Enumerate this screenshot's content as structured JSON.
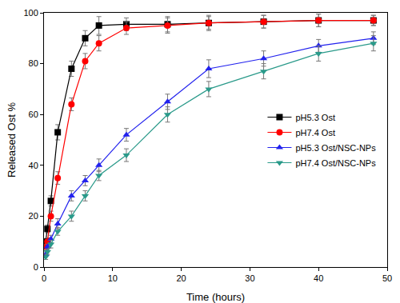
{
  "chart_data": {
    "type": "line",
    "x_label": "Time (hours)",
    "y_label": "Released Ost %",
    "xlim": [
      0,
      50
    ],
    "xticks": [
      0,
      10,
      20,
      30,
      40,
      50
    ],
    "ylim": [
      0,
      100
    ],
    "yticks": [
      0,
      20,
      40,
      60,
      80,
      100
    ],
    "grid": false,
    "legend": "right",
    "x": [
      0.25,
      0.5,
      1,
      2,
      4,
      6,
      8,
      12,
      18,
      24,
      32,
      40,
      48
    ],
    "series": [
      {
        "name": "pH5.3 Ost",
        "color": "#000000",
        "marker": "square",
        "values": [
          10,
          15,
          26,
          53,
          78,
          90,
          95,
          95.5,
          95.5,
          96,
          96.5,
          97,
          97
        ],
        "errors": [
          1,
          1.5,
          2,
          3,
          3,
          3,
          3.5,
          2.5,
          3,
          3,
          2.5,
          2.5,
          2
        ]
      },
      {
        "name": "pH7.4 Ost",
        "color": "#ff0000",
        "marker": "circle",
        "values": [
          8,
          10,
          20,
          35,
          64,
          81,
          88,
          94,
          95,
          96,
          96.5,
          97,
          97
        ],
        "errors": [
          1,
          1.5,
          2,
          2.5,
          2.5,
          3,
          3,
          2.5,
          3,
          2.5,
          2.5,
          2.5,
          2
        ]
      },
      {
        "name": "pH5.3 Ost/NSC-NPs",
        "color": "#2222ee",
        "marker": "triangle-up",
        "values": [
          5,
          8,
          11,
          17,
          28,
          34,
          40,
          52,
          65,
          78,
          82,
          87,
          90
        ],
        "errors": [
          1,
          1,
          1.5,
          2,
          2,
          2,
          2.5,
          2.5,
          3,
          3.5,
          3,
          2.5,
          2.5
        ]
      },
      {
        "name": "pH7.4 Ost/NSC-NPs",
        "color": "#2a9a8a",
        "marker": "triangle-down",
        "values": [
          4,
          6,
          9,
          14,
          20,
          28,
          36,
          44,
          60,
          70,
          77,
          84,
          88
        ],
        "errors": [
          1,
          1,
          1.5,
          1.5,
          2,
          2,
          2,
          2.5,
          3,
          3,
          3,
          3,
          3
        ]
      }
    ]
  }
}
